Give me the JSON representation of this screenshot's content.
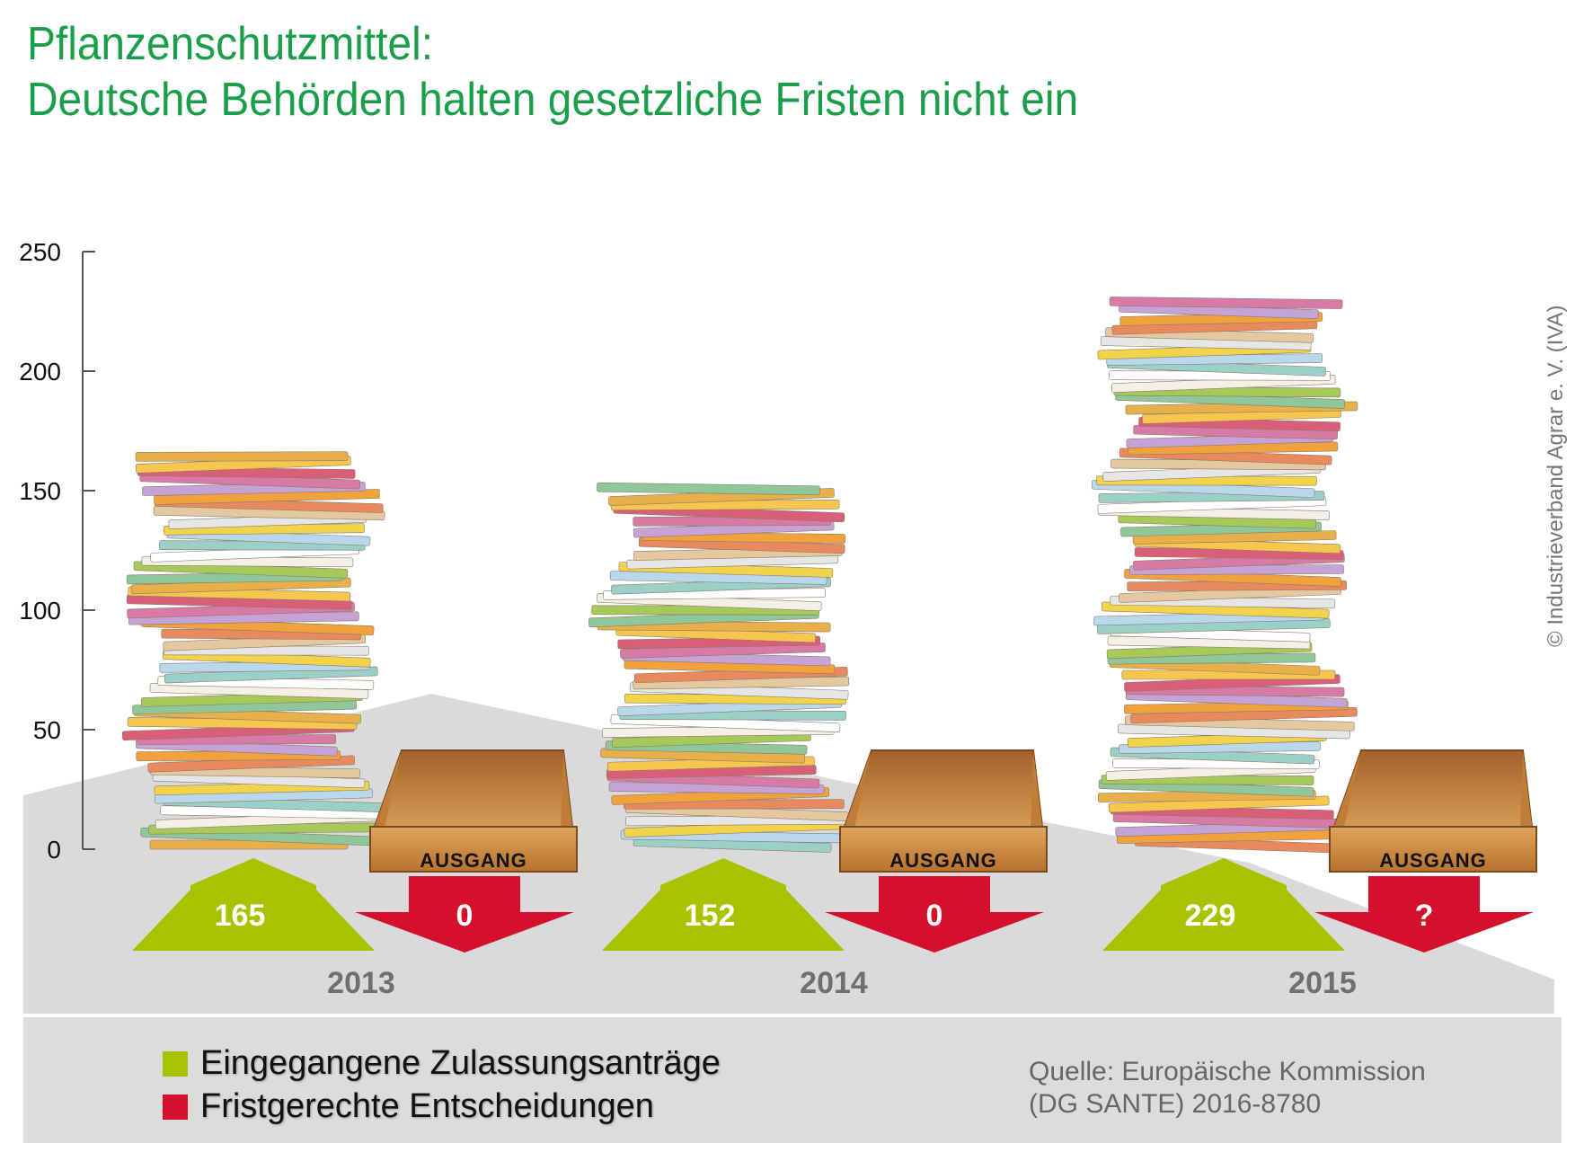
{
  "title": {
    "line1": "Pflanzenschutzmittel:",
    "line2": "Deutsche Behörden halten gesetzliche Fristen nicht ein"
  },
  "copyright": "© Industrieverband Agrar e. V. (IVA)",
  "legend": {
    "received": "Eingegangene Zulassungsanträge",
    "decisions": "Fristgerechte Entscheidungen"
  },
  "source": {
    "line1": "Quelle: Europäische Kommission",
    "line2": "(DG SANTE) 2016-8780"
  },
  "tray_label": "AUSGANG",
  "colors": {
    "title": "#1a9e4a",
    "received": "#a8c400",
    "decisions": "#d5102d",
    "wood": "#c8823e",
    "background_shape": "#dadada"
  },
  "chart_data": {
    "type": "bar",
    "categories": [
      "2013",
      "2014",
      "2015"
    ],
    "series": [
      {
        "name": "Eingegangene Zulassungsanträge",
        "values": [
          165,
          152,
          229
        ],
        "labels": [
          "165",
          "152",
          "229"
        ]
      },
      {
        "name": "Fristgerechte Entscheidungen",
        "values": [
          0,
          0,
          null
        ],
        "labels": [
          "0",
          "0",
          "?"
        ]
      }
    ],
    "yticks": [
      "250",
      "200",
      "150",
      "100",
      "50",
      "0"
    ],
    "ylim": [
      0,
      250
    ],
    "grid": false,
    "legend_position": "bottom"
  }
}
